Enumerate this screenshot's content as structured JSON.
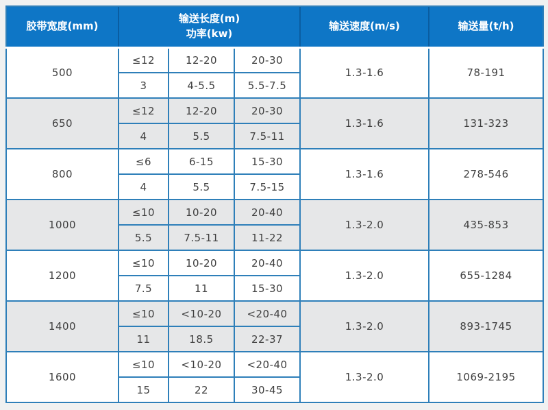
{
  "table": {
    "header": {
      "width": "胶带宽度(mm)",
      "length_line": "输送长度(m)",
      "power_line": "功率(kw)",
      "speed": "输送速度(m/s)",
      "capacity": "输送量(t/h)"
    },
    "rows": [
      {
        "width": "500",
        "lengths": [
          "≤12",
          "12-20",
          "20-30"
        ],
        "powers": [
          "3",
          "4-5.5",
          "5.5-7.5"
        ],
        "speed": "1.3-1.6",
        "capacity": "78-191"
      },
      {
        "width": "650",
        "lengths": [
          "≤12",
          "12-20",
          "20-30"
        ],
        "powers": [
          "4",
          "5.5",
          "7.5-11"
        ],
        "speed": "1.3-1.6",
        "capacity": "131-323"
      },
      {
        "width": "800",
        "lengths": [
          "≤6",
          "6-15",
          "15-30"
        ],
        "powers": [
          "4",
          "5.5",
          "7.5-15"
        ],
        "speed": "1.3-1.6",
        "capacity": "278-546"
      },
      {
        "width": "1000",
        "lengths": [
          "≤10",
          "10-20",
          "20-40"
        ],
        "powers": [
          "5.5",
          "7.5-11",
          "11-22"
        ],
        "speed": "1.3-2.0",
        "capacity": "435-853"
      },
      {
        "width": "1200",
        "lengths": [
          "≤10",
          "10-20",
          "20-40"
        ],
        "powers": [
          "7.5",
          "11",
          "15-30"
        ],
        "speed": "1.3-2.0",
        "capacity": "655-1284"
      },
      {
        "width": "1400",
        "lengths": [
          "≤10",
          "<10-20",
          "<20-40"
        ],
        "powers": [
          "11",
          "18.5",
          "22-37"
        ],
        "speed": "1.3-2.0",
        "capacity": "893-1745"
      },
      {
        "width": "1600",
        "lengths": [
          "≤10",
          "<10-20",
          "<20-40"
        ],
        "powers": [
          "15",
          "22",
          "30-45"
        ],
        "speed": "1.3-2.0",
        "capacity": "1069-2195"
      }
    ],
    "colors": {
      "header_bg": "#0e76c6",
      "header_divider": "#0a5da1",
      "border": "#2e7fb9",
      "row_alt_bg": "#e6e7e8",
      "row_bg": "#ffffff",
      "text": "#3f3f3f",
      "header_text": "#ffffff",
      "page_bg": "#f0f1f1"
    }
  },
  "chart_data": {
    "type": "table",
    "title": "",
    "columns": [
      "胶带宽度(mm)",
      "输送长度(m) / 功率(kw)",
      "输送速度(m/s)",
      "输送量(t/h)"
    ],
    "rows": [
      {
        "belt_width_mm": "500",
        "length_m": [
          "≤12",
          "12-20",
          "20-30"
        ],
        "power_kw": [
          "3",
          "4-5.5",
          "5.5-7.5"
        ],
        "speed_ms": "1.3-1.6",
        "capacity_th": "78-191"
      },
      {
        "belt_width_mm": "650",
        "length_m": [
          "≤12",
          "12-20",
          "20-30"
        ],
        "power_kw": [
          "4",
          "5.5",
          "7.5-11"
        ],
        "speed_ms": "1.3-1.6",
        "capacity_th": "131-323"
      },
      {
        "belt_width_mm": "800",
        "length_m": [
          "≤6",
          "6-15",
          "15-30"
        ],
        "power_kw": [
          "4",
          "5.5",
          "7.5-15"
        ],
        "speed_ms": "1.3-1.6",
        "capacity_th": "278-546"
      },
      {
        "belt_width_mm": "1000",
        "length_m": [
          "≤10",
          "10-20",
          "20-40"
        ],
        "power_kw": [
          "5.5",
          "7.5-11",
          "11-22"
        ],
        "speed_ms": "1.3-2.0",
        "capacity_th": "435-853"
      },
      {
        "belt_width_mm": "1200",
        "length_m": [
          "≤10",
          "10-20",
          "20-40"
        ],
        "power_kw": [
          "7.5",
          "11",
          "15-30"
        ],
        "speed_ms": "1.3-2.0",
        "capacity_th": "655-1284"
      },
      {
        "belt_width_mm": "1400",
        "length_m": [
          "≤10",
          "<10-20",
          "<20-40"
        ],
        "power_kw": [
          "11",
          "18.5",
          "22-37"
        ],
        "speed_ms": "1.3-2.0",
        "capacity_th": "893-1745"
      },
      {
        "belt_width_mm": "1600",
        "length_m": [
          "≤10",
          "<10-20",
          "<20-40"
        ],
        "power_kw": [
          "15",
          "22",
          "30-45"
        ],
        "speed_ms": "1.3-2.0",
        "capacity_th": "1069-2195"
      }
    ]
  }
}
